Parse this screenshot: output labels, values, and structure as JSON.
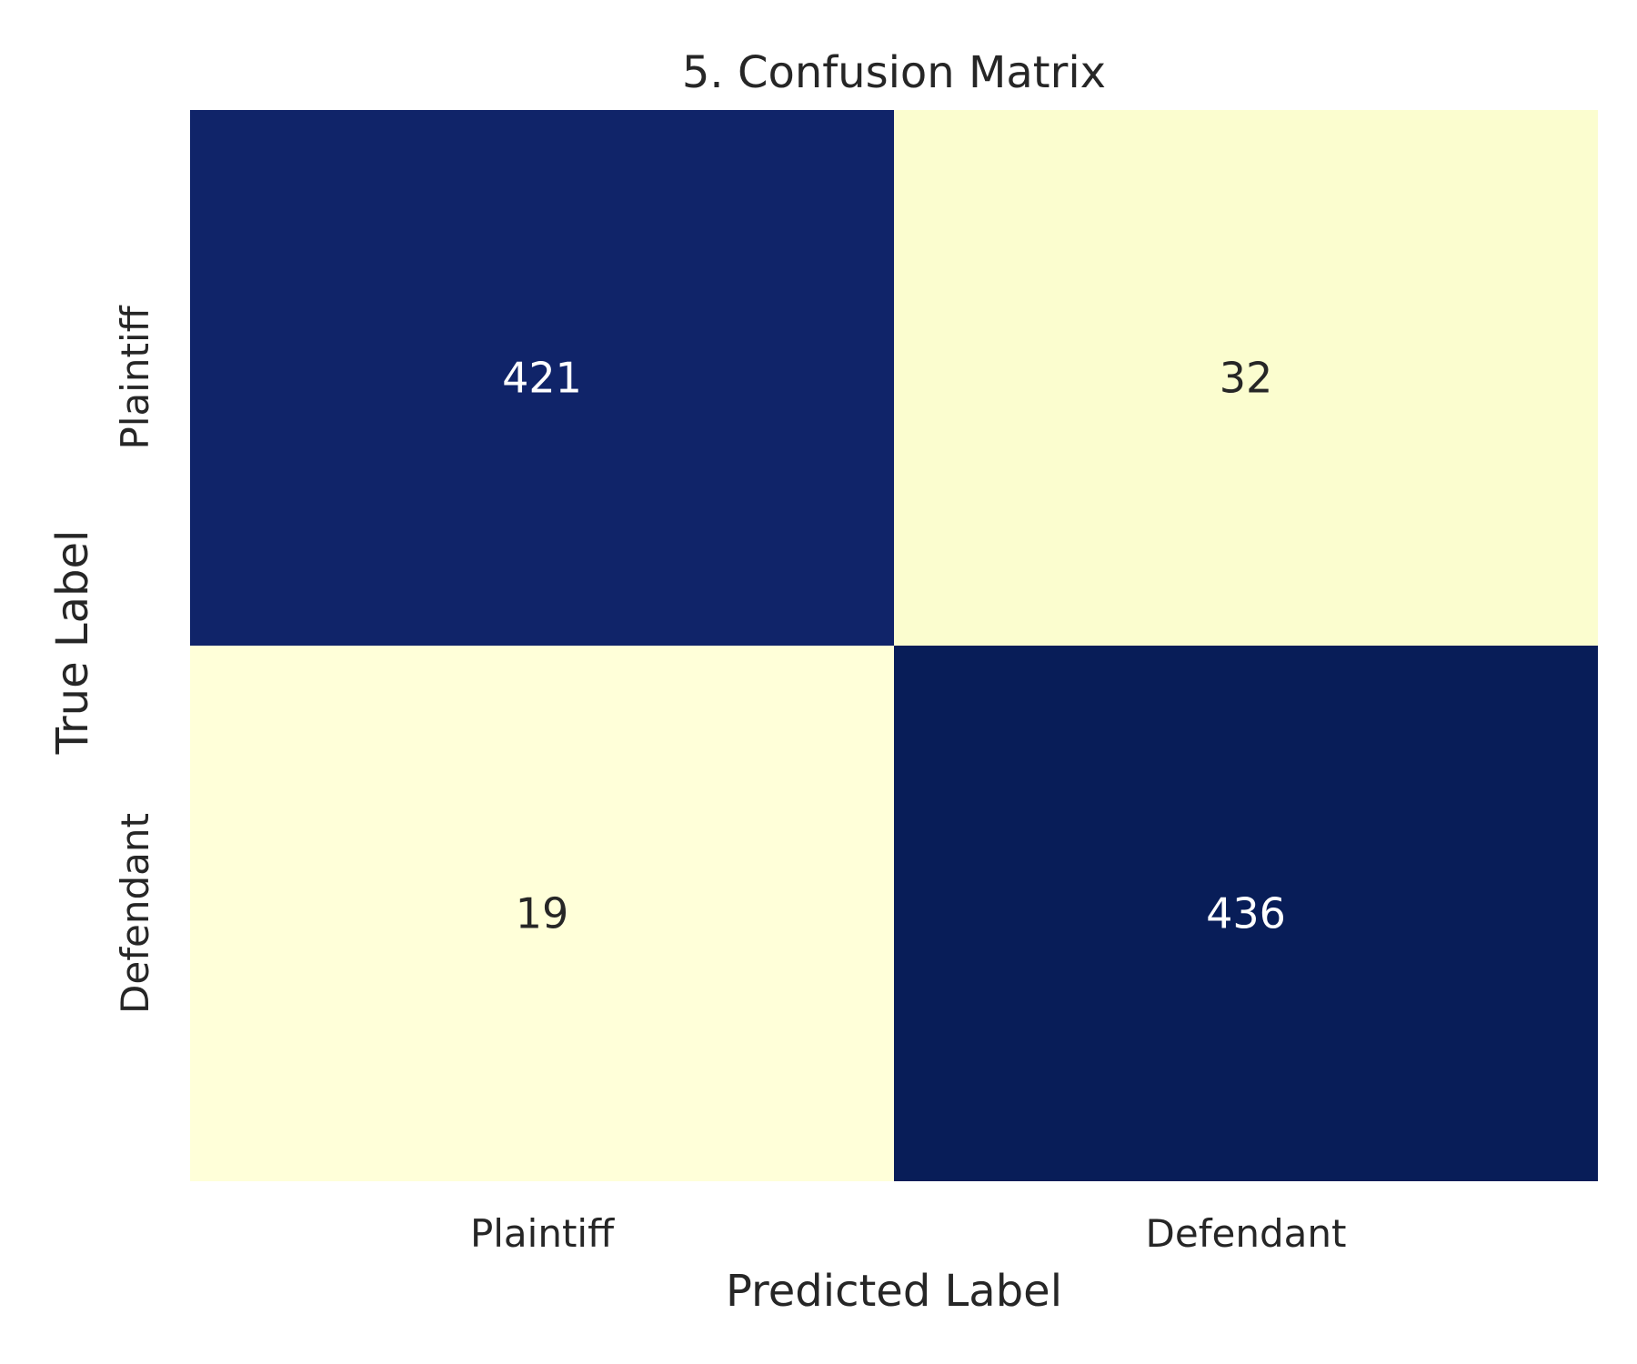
{
  "chart_data": {
    "type": "heatmap",
    "title": "5. Confusion Matrix",
    "xlabel": "Predicted Label",
    "ylabel": "True Label",
    "x_categories": [
      "Plaintiff",
      "Defendant"
    ],
    "y_categories": [
      "Plaintiff",
      "Defendant"
    ],
    "values": [
      [
        421,
        32
      ],
      [
        19,
        436
      ]
    ],
    "value_range": [
      19,
      436
    ],
    "colormap": "YlGnBu",
    "colors": {
      "low": "#ffffd9",
      "high": "#081d58",
      "text_on_dark": "#ffffff",
      "text_on_light": "#262626"
    },
    "grid": false,
    "legend": "none"
  }
}
